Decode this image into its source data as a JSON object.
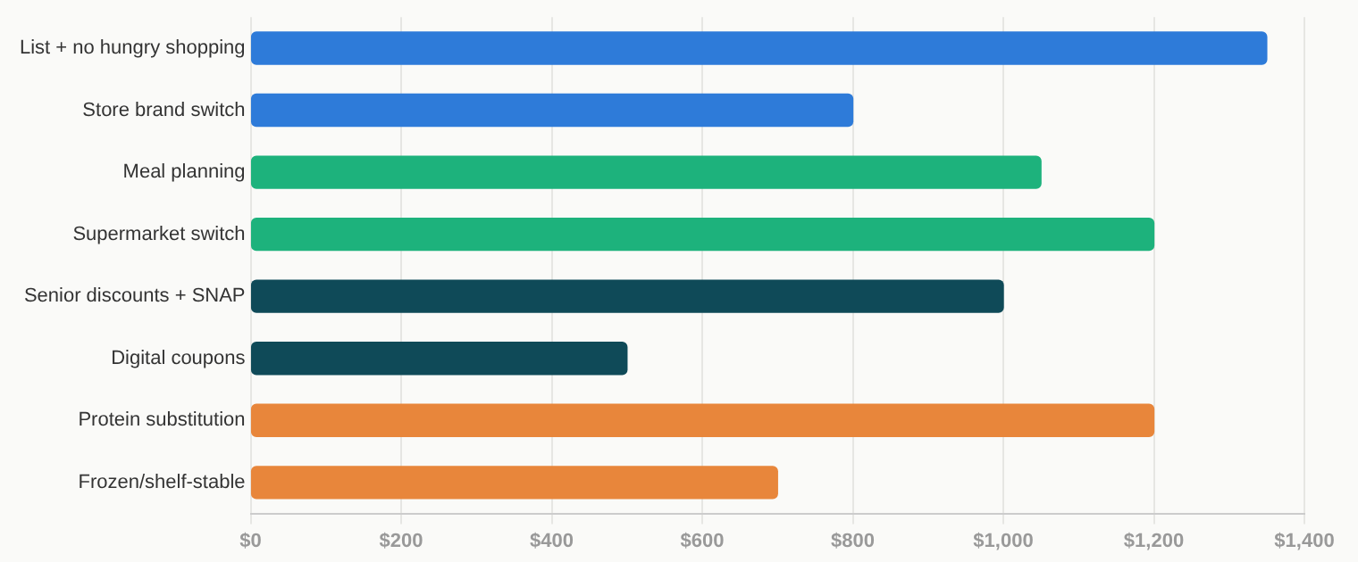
{
  "chart_data": {
    "type": "bar",
    "orientation": "horizontal",
    "categories": [
      "List + no hungry shopping",
      "Store brand switch",
      "Meal planning",
      "Supermarket switch",
      "Senior discounts + SNAP",
      "Digital coupons",
      "Protein substitution",
      "Frozen/shelf-stable"
    ],
    "values": [
      1350,
      800,
      1050,
      1200,
      1000,
      500,
      1200,
      700
    ],
    "colors": [
      "#2e7bd9",
      "#2e7bd9",
      "#1db27c",
      "#1db27c",
      "#0f4a58",
      "#0f4a58",
      "#e8863b",
      "#e8863b"
    ],
    "xlim": [
      0,
      1400
    ],
    "xticks": [
      {
        "value": 0,
        "label": "$0"
      },
      {
        "value": 200,
        "label": "$200"
      },
      {
        "value": 400,
        "label": "$400"
      },
      {
        "value": 600,
        "label": "$600"
      },
      {
        "value": 800,
        "label": "$800"
      },
      {
        "value": 1000,
        "label": "$1,000"
      },
      {
        "value": 1200,
        "label": "$1,200"
      },
      {
        "value": 1400,
        "label": "$1,400"
      }
    ],
    "grid": "x",
    "legend": false
  }
}
